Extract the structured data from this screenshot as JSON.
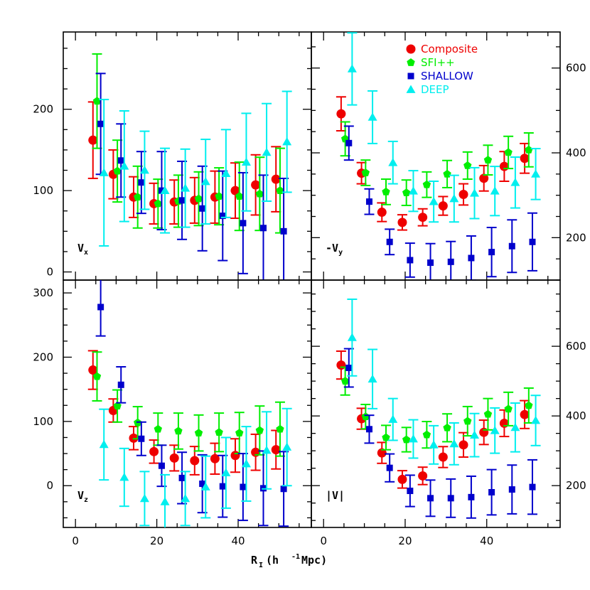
{
  "chart_data": {
    "type": "scatter",
    "xlabel": "R_I (h⁻¹ Mpc)",
    "xlabel_main": "R",
    "xlabel_sub": "I",
    "xlabel_rest": " (h",
    "xlabel_sup": "-1",
    "xlabel_end": " Mpc)",
    "xlim": [
      -3,
      58
    ],
    "x_ticks": [
      0,
      20,
      40
    ],
    "legend": {
      "placement": "top-right",
      "entries": [
        {
          "name": "Composite",
          "color": "#ee0000",
          "marker": "circle"
        },
        {
          "name": "SFI++",
          "color": "#00ee00",
          "marker": "pentagon"
        },
        {
          "name": "SHALLOW",
          "color": "#0000cc",
          "marker": "square"
        },
        {
          "name": "DEEP",
          "color": "#00eeee",
          "marker": "triangle"
        }
      ]
    },
    "panels": [
      {
        "id": "vx",
        "label": "V",
        "label_sub": "x",
        "ylim": [
          -10,
          295
        ],
        "y_ticks": [
          0,
          100,
          200
        ],
        "y_axis_side": "left",
        "series": [
          {
            "name": "Composite",
            "x": [
              4.3,
              9.3,
              14.3,
              19.3,
              24.3,
              29.3,
              34.3,
              39.3,
              44.3,
              49.3
            ],
            "y": [
              162,
              120,
              92,
              84,
              86,
              88,
              92,
              100,
              107,
              114
            ],
            "err": [
              47,
              30,
              25,
              25,
              27,
              28,
              32,
              34,
              37,
              40
            ]
          },
          {
            "name": "SFI++",
            "x": [
              5.3,
              10.3,
              15.3,
              20.3,
              25.3,
              30.3,
              35.3,
              40.3,
              45.3,
              50.3
            ],
            "y": [
              210,
              124,
              92,
              84,
              87,
              90,
              93,
              93,
              96,
              100
            ],
            "err": [
              58,
              38,
              38,
              30,
              32,
              33,
              35,
              42,
              45,
              52
            ]
          },
          {
            "name": "SHALLOW",
            "x": [
              6.2,
              11.2,
              16.2,
              21.2,
              26.2,
              31.2,
              36.2,
              41.2,
              46.2,
              51.2
            ],
            "y": [
              182,
              137,
              110,
              100,
              88,
              78,
              69,
              60,
              54,
              50
            ],
            "err": [
              62,
              45,
              38,
              48,
              48,
              52,
              55,
              62,
              65,
              65
            ]
          },
          {
            "name": "DEEP",
            "x": [
              7,
              12,
              17,
              22,
              27,
              32,
              37,
              42,
              47,
              52
            ],
            "y": [
              122,
              130,
              125,
              100,
              103,
              111,
              121,
              135,
              147,
              160
            ],
            "err": [
              90,
              68,
              48,
              52,
              48,
              52,
              54,
              60,
              60,
              62
            ]
          }
        ]
      },
      {
        "id": "vy",
        "label": "-V",
        "label_sub": "y",
        "ylim": [
          100,
          685
        ],
        "y_ticks": [
          200,
          400,
          600
        ],
        "y_axis_side": "right",
        "series": [
          {
            "name": "Composite",
            "x": [
              4.3,
              9.3,
              14.3,
              19.3,
              24.3,
              29.3,
              34.3,
              39.3,
              44.3,
              49.3
            ],
            "y": [
              492,
              352,
              260,
              236,
              248,
              275,
              302,
              340,
              368,
              387
            ],
            "err": [
              40,
              25,
              22,
              18,
              20,
              22,
              25,
              30,
              35,
              35
            ]
          },
          {
            "name": "SFI++",
            "x": [
              5.3,
              10.3,
              15.3,
              20.3,
              25.3,
              30.3,
              35.3,
              40.3,
              45.3,
              50.3
            ],
            "y": [
              433,
              353,
              308,
              306,
              325,
              350,
              370,
              383,
              401,
              407
            ],
            "err": [
              40,
              30,
              30,
              30,
              30,
              32,
              32,
              35,
              38,
              40
            ]
          },
          {
            "name": "SHALLOW",
            "x": [
              6.2,
              11.2,
              16.2,
              21.2,
              26.2,
              31.2,
              36.2,
              41.2,
              46.2,
              51.2
            ],
            "y": [
              423,
              285,
              190,
              147,
              141,
              143,
              152,
              166,
              180,
              190
            ],
            "err": [
              40,
              30,
              30,
              40,
              45,
              48,
              52,
              58,
              62,
              68
            ]
          },
          {
            "name": "DEEP",
            "x": [
              7,
              12,
              17,
              22,
              27,
              32,
              37,
              42,
              47,
              52
            ],
            "y": [
              598,
              484,
              377,
              310,
              285,
              292,
              305,
              310,
              330,
              350
            ],
            "err": [
              85,
              62,
              50,
              48,
              48,
              55,
              60,
              58,
              60,
              60
            ]
          }
        ]
      },
      {
        "id": "vz",
        "label": "V",
        "label_sub": "z",
        "ylim": [
          -65,
          320
        ],
        "y_ticks": [
          0,
          100,
          200,
          300
        ],
        "y_axis_side": "left",
        "series": [
          {
            "name": "Composite",
            "x": [
              4.3,
              9.3,
              14.3,
              19.3,
              24.3,
              29.3,
              34.3,
              39.3,
              44.3,
              49.3
            ],
            "y": [
              180,
              117,
              74,
              53,
              43,
              39,
              42,
              47,
              52,
              56
            ],
            "err": [
              30,
              18,
              18,
              18,
              20,
              22,
              24,
              26,
              28,
              30
            ]
          },
          {
            "name": "SFI++",
            "x": [
              5.3,
              10.3,
              15.3,
              20.3,
              25.3,
              30.3,
              35.3,
              40.3,
              45.3,
              50.3
            ],
            "y": [
              170,
              124,
              98,
              88,
              85,
              82,
              83,
              82,
              86,
              88
            ],
            "err": [
              38,
              25,
              25,
              25,
              28,
              28,
              30,
              32,
              38,
              42
            ]
          },
          {
            "name": "SHALLOW",
            "x": [
              6.2,
              11.2,
              16.2,
              21.2,
              26.2,
              31.2,
              36.2,
              41.2,
              46.2,
              51.2
            ],
            "y": [
              278,
              157,
              73,
              31,
              12,
              3,
              -1,
              -2,
              -4,
              -5
            ],
            "err": [
              45,
              28,
              26,
              32,
              40,
              45,
              48,
              52,
              58,
              58
            ]
          },
          {
            "name": "DEEP",
            "x": [
              7,
              12,
              17,
              22,
              27,
              32,
              37,
              42,
              47,
              52
            ],
            "y": [
              64,
              13,
              -20,
              -25,
              -20,
              -2,
              20,
              34,
              55,
              60
            ],
            "err": [
              55,
              45,
              42,
              42,
              42,
              48,
              55,
              58,
              60,
              60
            ]
          }
        ]
      },
      {
        "id": "vmag",
        "label": "|V|",
        "label_sub": "",
        "ylim": [
          80,
          790
        ],
        "y_ticks": [
          200,
          400,
          600
        ],
        "y_axis_side": "right",
        "series": [
          {
            "name": "Composite",
            "x": [
              4.3,
              9.3,
              14.3,
              19.3,
              24.3,
              29.3,
              34.3,
              39.3,
              44.3,
              49.3
            ],
            "y": [
              546,
              392,
              294,
              218,
              228,
              282,
              317,
              353,
              379,
              404
            ],
            "err": [
              40,
              30,
              30,
              25,
              25,
              30,
              35,
              35,
              38,
              40
            ]
          },
          {
            "name": "SFI++",
            "x": [
              5.3,
              10.3,
              15.3,
              20.3,
              25.3,
              30.3,
              35.3,
              40.3,
              45.3,
              50.3
            ],
            "y": [
              500,
              398,
              338,
              332,
              346,
              366,
              385,
              405,
              420,
              430
            ],
            "err": [
              40,
              35,
              35,
              35,
              38,
              40,
              42,
              45,
              48,
              50
            ]
          },
          {
            "name": "SHALLOW",
            "x": [
              6.2,
              11.2,
              16.2,
              21.2,
              26.2,
              31.2,
              36.2,
              41.2,
              46.2,
              51.2
            ],
            "y": [
              538,
              362,
              251,
              185,
              164,
              164,
              167,
              181,
              189,
              196
            ],
            "err": [
              55,
              40,
              40,
              45,
              52,
              55,
              60,
              65,
              70,
              78
            ]
          },
          {
            "name": "DEEP",
            "x": [
              7,
              12,
              17,
              22,
              27,
              32,
              37,
              42,
              47,
              52
            ],
            "y": [
              625,
              506,
              390,
              334,
              317,
              320,
              345,
              358,
              367,
              387
            ],
            "err": [
              110,
              85,
              60,
              55,
              55,
              60,
              62,
              65,
              70,
              72
            ]
          }
        ]
      }
    ]
  }
}
